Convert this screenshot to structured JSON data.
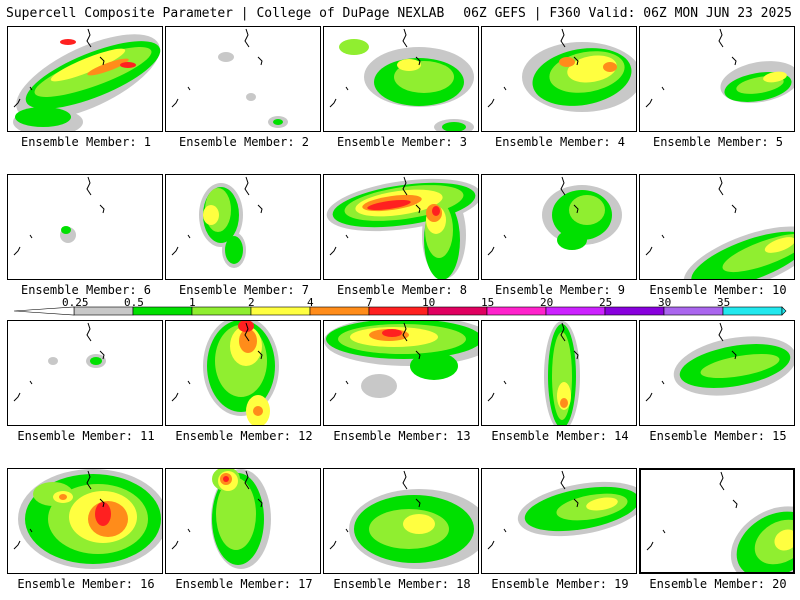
{
  "header": {
    "left": "Supercell Composite Parameter | College of DuPage NEXLAB",
    "right": "06Z GEFS | F360 Valid: 06Z MON JUN 23 2025"
  },
  "colorbar": {
    "ticks": [
      "0.25",
      "0.5",
      "1",
      "2",
      "4",
      "7",
      "10",
      "15",
      "20",
      "25",
      "30",
      "35"
    ],
    "colors": [
      "#c8c8c8",
      "#00e000",
      "#90ee30",
      "#ffff40",
      "#ff8c1a",
      "#ff2020",
      "#e00060",
      "#ff22cc",
      "#cc22ff",
      "#8800dd",
      "#aa66ee",
      "#22e8ee"
    ]
  },
  "panels": [
    {
      "label": "Ensemble Member: 1"
    },
    {
      "label": "Ensemble Member: 2"
    },
    {
      "label": "Ensemble Member: 3"
    },
    {
      "label": "Ensemble Member: 4"
    },
    {
      "label": "Ensemble Member: 5"
    },
    {
      "label": "Ensemble Member: 6"
    },
    {
      "label": "Ensemble Member: 7"
    },
    {
      "label": "Ensemble Member: 8"
    },
    {
      "label": "Ensemble Member: 9"
    },
    {
      "label": "Ensemble Member: 10"
    },
    {
      "label": "Ensemble Member: 11"
    },
    {
      "label": "Ensemble Member: 12"
    },
    {
      "label": "Ensemble Member: 13"
    },
    {
      "label": "Ensemble Member: 14"
    },
    {
      "label": "Ensemble Member: 15"
    },
    {
      "label": "Ensemble Member: 16"
    },
    {
      "label": "Ensemble Member: 17"
    },
    {
      "label": "Ensemble Member: 18"
    },
    {
      "label": "Ensemble Member: 19"
    },
    {
      "label": "Ensemble Member: 20"
    }
  ]
}
